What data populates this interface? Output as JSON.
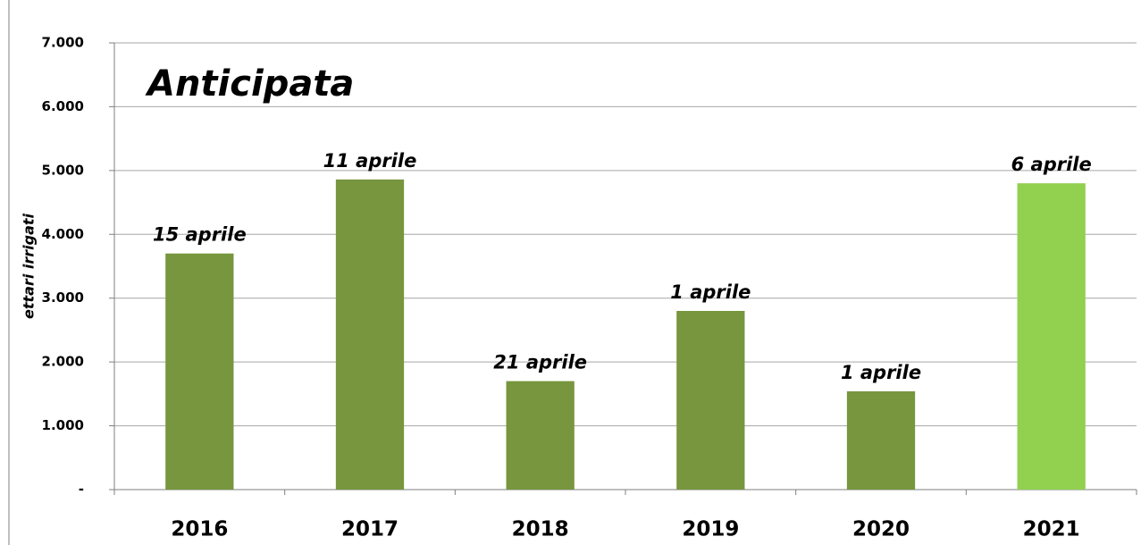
{
  "chart_data": {
    "type": "bar",
    "title": "Anticipata",
    "y_label": "ettari irrigati",
    "categories": [
      "2016",
      "2017",
      "2018",
      "2019",
      "2020",
      "2021"
    ],
    "values": [
      3700,
      4860,
      1700,
      2800,
      1540,
      4800
    ],
    "bar_labels": [
      "15 aprile",
      "11 aprile",
      "21 aprile",
      "1 aprile",
      "1 aprile",
      "6 aprile"
    ],
    "colors": [
      "#77963e",
      "#77963e",
      "#77963e",
      "#77963e",
      "#77963e",
      "#92d050"
    ],
    "ylim": [
      0,
      7000
    ],
    "yticks": [
      {
        "value": 0,
        "label": "-"
      },
      {
        "value": 1000,
        "label": "1.000"
      },
      {
        "value": 2000,
        "label": "2.000"
      },
      {
        "value": 3000,
        "label": "3.000"
      },
      {
        "value": 4000,
        "label": "4.000"
      },
      {
        "value": 5000,
        "label": "5.000"
      },
      {
        "value": 6000,
        "label": "6.000"
      },
      {
        "value": 7000,
        "label": "7.000"
      }
    ],
    "grid": true
  }
}
